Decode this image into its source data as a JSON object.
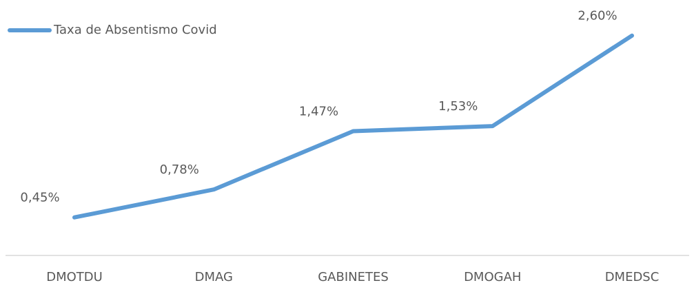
{
  "chart_data": {
    "type": "line",
    "categories": [
      "DMOTDU",
      "DMAG",
      "GABINETES",
      "DMOGAH",
      "DMEDSC"
    ],
    "series": [
      {
        "name": "Taxa de Absentismo Covid",
        "color": "#5b9bd5",
        "values": [
          0.45,
          0.78,
          1.47,
          1.53,
          2.6
        ],
        "value_labels": [
          "0,45%",
          "0,78%",
          "1,47%",
          "1,53%",
          "2,60%"
        ]
      }
    ],
    "legend": "top-left"
  }
}
